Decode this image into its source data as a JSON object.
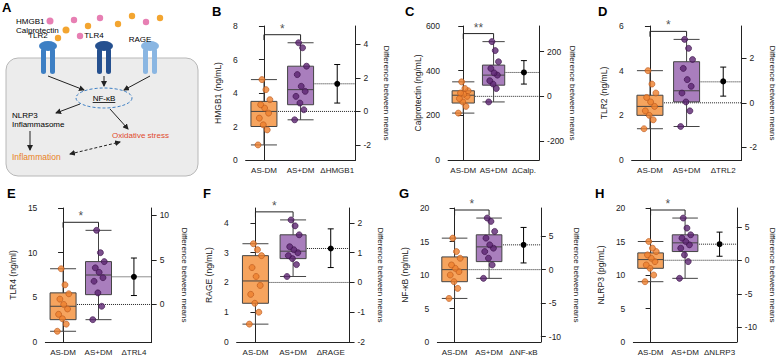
{
  "diagram": {
    "title": "A",
    "ligands": [
      "HMGB1",
      "Calprotectin"
    ],
    "receptors": [
      "TLR2",
      "TLR4",
      "RAGE"
    ],
    "transcription_factor": "NF-κB",
    "inflammasome": [
      "NLRP3",
      "Inflammasome"
    ],
    "oxidative_stress": "Oxidative stress",
    "inflammation": "Inflammation"
  },
  "chart_data": [
    {
      "type": "boxplot",
      "title": "B",
      "y_label": "HMGB1 (ng/mL)",
      "y2_label": "Difference between means",
      "categories": [
        "AS-DM",
        "AS+DM",
        "ΔHMGB1"
      ],
      "colors": [
        "#f6a45e",
        "#a97ebd"
      ],
      "boxes": [
        [
          0.9,
          2.0,
          2.9,
          3.5,
          4.8
        ],
        [
          2.4,
          3.3,
          4.2,
          5.6,
          7.0
        ]
      ],
      "points": [
        [
          0.9,
          1.8,
          2.1,
          2.5,
          2.8,
          3.1,
          3.3,
          3.6,
          4.2,
          4.8
        ],
        [
          2.4,
          3.0,
          3.4,
          3.8,
          4.1,
          4.4,
          5.1,
          5.6,
          6.7,
          7.0
        ]
      ],
      "means": [
        2.9,
        4.55
      ],
      "difference": {
        "value": 1.65,
        "ci": [
          0.5,
          2.8
        ]
      },
      "significance": "*",
      "ylim": [
        0,
        8
      ],
      "yticks": [
        0,
        2,
        4,
        6,
        8
      ],
      "y2lim": [
        -2.9,
        5.1
      ],
      "y2ticks": [
        -2,
        0,
        2,
        4
      ]
    },
    {
      "type": "boxplot",
      "title": "C",
      "y_label": "Calprotectin (ng/mL)",
      "y2_label": "Difference between means",
      "categories": [
        "AS-DM",
        "AS+DM",
        "ΔCalp."
      ],
      "colors": [
        "#f6a45e",
        "#a97ebd"
      ],
      "boxes": [
        [
          210,
          255,
          290,
          310,
          350
        ],
        [
          260,
          335,
          380,
          425,
          530
        ]
      ],
      "points": [
        [
          210,
          240,
          260,
          275,
          285,
          295,
          300,
          310,
          320,
          350
        ],
        [
          260,
          320,
          340,
          355,
          380,
          390,
          410,
          440,
          490,
          530
        ]
      ],
      "means": [
        285,
        392
      ],
      "difference": {
        "value": 107,
        "ci": [
          55,
          160
        ]
      },
      "significance": "**",
      "ylim": [
        0,
        600
      ],
      "yticks": [
        0,
        200,
        400,
        600
      ],
      "y2lim": [
        -285,
        315
      ],
      "y2ticks": [
        -200,
        0,
        200
      ]
    },
    {
      "type": "boxplot",
      "title": "D",
      "y_label": "TLR2 (ng/mL)",
      "y2_label": "Difference between means",
      "categories": [
        "AS-DM",
        "AS+DM",
        "ΔTRL2"
      ],
      "colors": [
        "#f6a45e",
        "#a97ebd"
      ],
      "boxes": [
        [
          1.4,
          2.0,
          2.4,
          2.9,
          4.0
        ],
        [
          1.5,
          2.6,
          3.1,
          4.4,
          5.4
        ]
      ],
      "points": [
        [
          1.4,
          1.8,
          2.0,
          2.2,
          2.4,
          2.6,
          2.8,
          3.0,
          3.4,
          4.0
        ],
        [
          1.5,
          2.2,
          2.6,
          3.0,
          3.3,
          3.6,
          4.1,
          4.5,
          5.0,
          5.4
        ]
      ],
      "means": [
        2.56,
        3.5
      ],
      "difference": {
        "value": 0.96,
        "ci": [
          0.3,
          1.6
        ]
      },
      "significance": "*",
      "ylim": [
        0,
        6
      ],
      "yticks": [
        0,
        2,
        4,
        6
      ],
      "y2lim": [
        -2.56,
        3.44
      ],
      "y2ticks": [
        -2,
        0,
        2
      ]
    },
    {
      "type": "boxplot",
      "title": "E",
      "y_label": "TLR4 (ng/ml)",
      "y2_label": "Difference between means",
      "categories": [
        "AS-DM",
        "AS+DM",
        "ΔTRL4"
      ],
      "colors": [
        "#f6a45e",
        "#a97ebd"
      ],
      "boxes": [
        [
          1.2,
          2.5,
          4.0,
          5.5,
          8.2
        ],
        [
          2.5,
          5.3,
          7.5,
          9.0,
          12.5
        ]
      ],
      "points": [
        [
          1.2,
          2.0,
          2.6,
          3.1,
          3.7,
          4.2,
          4.8,
          5.4,
          6.4,
          8.2
        ],
        [
          2.5,
          4.0,
          5.5,
          6.8,
          7.2,
          7.8,
          8.3,
          9.0,
          10.0,
          12.5
        ]
      ],
      "means": [
        4.2,
        7.3
      ],
      "difference": {
        "value": 3.1,
        "ci": [
          1.0,
          5.2
        ]
      },
      "significance": "*",
      "ylim": [
        0,
        15
      ],
      "yticks": [
        0,
        5,
        10,
        15
      ],
      "y2lim": [
        -4.2,
        10.8
      ],
      "y2ticks": [
        0,
        5,
        10
      ]
    },
    {
      "type": "boxplot",
      "title": "F",
      "y_label": "RAGE (ng/mL)",
      "y2_label": "Difference between means",
      "categories": [
        "AS-DM",
        "AS+DM",
        "ΔRAGE"
      ],
      "colors": [
        "#f6a45e",
        "#a97ebd"
      ],
      "boxes": [
        [
          0.6,
          1.3,
          2.05,
          2.9,
          3.3
        ],
        [
          2.2,
          2.8,
          3.05,
          3.6,
          4.1
        ]
      ],
      "points": [
        [
          0.6,
          1.0,
          1.3,
          1.6,
          1.9,
          2.2,
          2.5,
          2.9,
          3.1,
          3.3
        ],
        [
          2.2,
          2.6,
          2.8,
          2.9,
          3.0,
          3.1,
          3.2,
          3.6,
          3.9,
          4.1
        ]
      ],
      "means": [
        2.0,
        3.14
      ],
      "difference": {
        "value": 1.14,
        "ci": [
          0.5,
          1.8
        ]
      },
      "significance": "*",
      "ylim": [
        0,
        4.5
      ],
      "yticks": [
        0,
        1,
        2,
        3,
        4
      ],
      "y2lim": [
        -2,
        2.5
      ],
      "y2ticks": [
        -2,
        -1,
        0,
        1,
        2
      ]
    },
    {
      "type": "boxplot",
      "title": "G",
      "y_label": "NF-κB (ng/mL)",
      "y2_label": "Difference between means",
      "categories": [
        "AS-DM",
        "AS+DM",
        "ΔNF-κB"
      ],
      "colors": [
        "#f6a45e",
        "#a97ebd"
      ],
      "boxes": [
        [
          6.5,
          9.0,
          10.8,
          12.7,
          15.5
        ],
        [
          9.5,
          12.0,
          14.2,
          16.0,
          18.5
        ]
      ],
      "points": [
        [
          6.5,
          8.0,
          9.0,
          10.0,
          10.5,
          11.0,
          11.5,
          12.5,
          13.5,
          15.5
        ],
        [
          9.5,
          11.5,
          12.5,
          13.5,
          14.0,
          14.5,
          15.5,
          16.5,
          18.0,
          18.5
        ]
      ],
      "means": [
        10.8,
        14.5
      ],
      "difference": {
        "value": 3.7,
        "ci": [
          1.0,
          6.3
        ]
      },
      "significance": "*",
      "ylim": [
        0,
        20
      ],
      "yticks": [
        0,
        5,
        10,
        15,
        20
      ],
      "y2lim": [
        -10.8,
        9.2
      ],
      "y2ticks": [
        -10,
        -5,
        0,
        5
      ]
    },
    {
      "type": "boxplot",
      "title": "H",
      "y_label": "NLRP3 (pg/mL)",
      "y2_label": "Difference between means",
      "categories": [
        "AS-DM",
        "AS+DM",
        "ΔNLRP3"
      ],
      "colors": [
        "#f6a45e",
        "#a97ebd"
      ],
      "boxes": [
        [
          9.0,
          11.0,
          12.3,
          13.3,
          15.0
        ],
        [
          9.5,
          13.5,
          14.8,
          16.0,
          18.5
        ]
      ],
      "points": [
        [
          9.0,
          10.0,
          11.0,
          11.5,
          12.0,
          12.5,
          13.0,
          13.5,
          14.0,
          15.0
        ],
        [
          9.5,
          12.0,
          13.0,
          14.0,
          14.5,
          15.0,
          15.5,
          16.0,
          17.0,
          18.5
        ]
      ],
      "means": [
        12.2,
        14.6
      ],
      "difference": {
        "value": 2.4,
        "ci": [
          0.6,
          4.2
        ]
      },
      "significance": "*",
      "ylim": [
        0,
        20
      ],
      "yticks": [
        0,
        5,
        10,
        15,
        20
      ],
      "y2lim": [
        -12.2,
        7.8
      ],
      "y2ticks": [
        -10,
        -5,
        0,
        5
      ]
    }
  ]
}
